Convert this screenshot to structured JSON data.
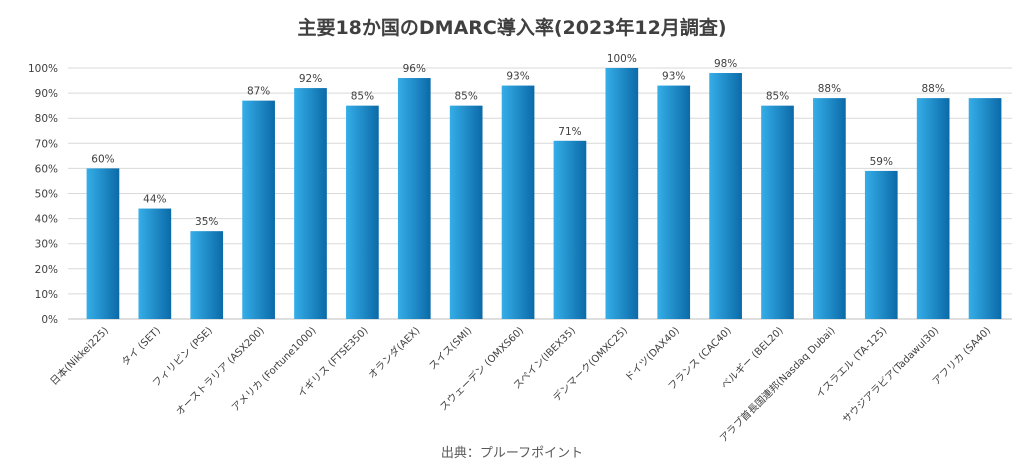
{
  "chart_data": {
    "type": "bar",
    "title": "主要18か国のDMARC導入率(2023年12月調査)",
    "categories": [
      "日本(Nikkei225)",
      "タイ (SET)",
      "フィリピン (PSE)",
      "オーストラリア (ASX200)",
      "アメリカ (Fortune1000)",
      "イギリス (FTSE350)",
      "オランダ(AEX)",
      "スイス(SMI)",
      "スウェーデン (OMXS60)",
      "スペイン(IBEX35)",
      "デンマーク(OMXC25)",
      "ドイツ(DAX40)",
      "フランス (CAC40)",
      "ベルギー (BEL20)",
      "アラブ首長国連邦(Nasdaq Dubai)",
      "イスラエル (TA-125)",
      "サウジアラビア(Tadawul30)",
      "アフリカ (SA40)"
    ],
    "values": [
      60,
      44,
      35,
      87,
      92,
      85,
      96,
      85,
      93,
      71,
      100,
      93,
      98,
      85,
      88,
      59,
      88,
      88
    ],
    "data_labels": [
      "60%",
      "44%",
      "35%",
      "87%",
      "92%",
      "85%",
      "96%",
      "85%",
      "93%",
      "71%",
      "100%",
      "93%",
      "98%",
      "85%",
      "88%",
      "59%",
      "88%",
      ""
    ],
    "yticks": [
      "0%",
      "10%",
      "20%",
      "30%",
      "40%",
      "50%",
      "60%",
      "70%",
      "80%",
      "90%",
      "100%"
    ],
    "ylim": [
      0,
      100
    ],
    "xlabel": "",
    "ylabel": "",
    "grid": true,
    "bar_color_light": "#35aee8",
    "bar_color_dark": "#0b6aa8"
  },
  "source": "出典：プルーフポイント"
}
